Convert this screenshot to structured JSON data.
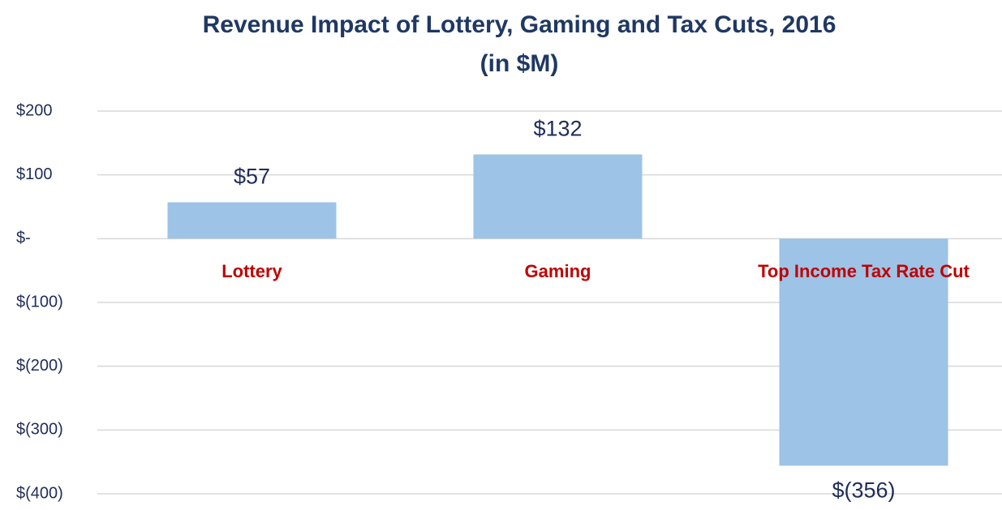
{
  "chart_data": {
    "type": "bar",
    "title": [
      "Revenue Impact of Lottery, Gaming and Tax Cuts, 2016",
      "(in $M)"
    ],
    "categories": [
      "Lottery",
      "Gaming",
      "Top Income Tax Rate Cut"
    ],
    "values": [
      57,
      132,
      -356
    ],
    "value_labels": [
      "$57",
      "$132",
      "$(356)"
    ],
    "color": "#9dc3e6",
    "ylim": [
      -400,
      200
    ],
    "yticks": [
      {
        "value": 200,
        "label": "$200"
      },
      {
        "value": 100,
        "label": "$100"
      },
      {
        "value": 0,
        "label": "$-"
      },
      {
        "value": -100,
        "label": "$(100)"
      },
      {
        "value": -200,
        "label": "$(200)"
      },
      {
        "value": -300,
        "label": "$(300)"
      },
      {
        "value": -400,
        "label": "$(400)"
      }
    ],
    "grid": true
  }
}
